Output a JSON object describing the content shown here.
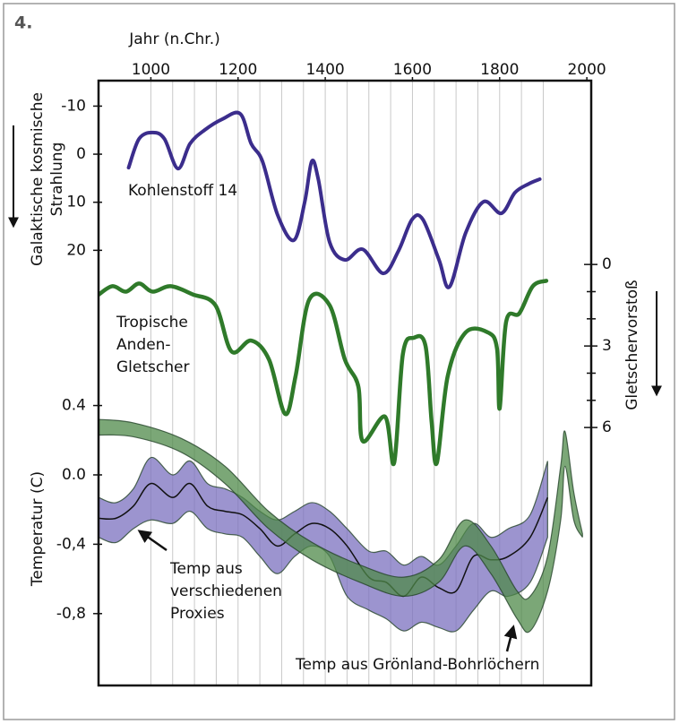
{
  "panel_label": "4.",
  "chart_data": [
    {
      "type": "line",
      "xlabel": "Jahr (n.Chr.)",
      "ylabel": [
        "Galaktische kosmische",
        "Strahlung"
      ],
      "xlim": [
        880,
        2010
      ],
      "xticks": [
        1000,
        1200,
        1400,
        1600,
        1800,
        2000
      ],
      "x_gridlines": [
        1000,
        1050,
        1100,
        1150,
        1200,
        1250,
        1300,
        1350,
        1400,
        1450,
        1500,
        1550,
        1600,
        1650,
        1700,
        1750,
        1800,
        1850,
        1900
      ],
      "ylim": [
        -15,
        30
      ],
      "y_inverted": true,
      "yticks": [
        -10,
        0,
        10,
        20
      ],
      "series": [
        {
          "name": "Kohlenstoff 14",
          "color": "#3b2d8c",
          "x": [
            949,
            973,
            1004,
            1031,
            1062,
            1090,
            1123,
            1164,
            1205,
            1230,
            1256,
            1291,
            1328,
            1353,
            1369,
            1384,
            1410,
            1445,
            1486,
            1533,
            1568,
            1599,
            1624,
            1661,
            1685,
            1722,
            1763,
            1804,
            1835,
            1866,
            1892
          ],
          "values": [
            2.8,
            -3.2,
            -4.5,
            -3.2,
            3.0,
            -2.2,
            -5.0,
            -7.3,
            -8.4,
            -2.2,
            1.5,
            12.7,
            17.9,
            9.9,
            1.5,
            5.2,
            18.3,
            22.0,
            19.8,
            24.8,
            20.1,
            13.6,
            13.6,
            22.0,
            27.6,
            16.4,
            9.9,
            12.3,
            8.0,
            6.2,
            5.2
          ]
        }
      ],
      "annotations": [
        {
          "text": [
            "Kohlenstoff 14"
          ]
        }
      ]
    },
    {
      "type": "line",
      "y2label": "Gletschervorstoß",
      "xlim": [
        880,
        2010
      ],
      "y2lim": [
        -0.5,
        7.5
      ],
      "y2_inverted": true,
      "y2ticks": [
        0,
        3,
        6
      ],
      "y2_minor_ticks": [
        1,
        2,
        4,
        5
      ],
      "series": [
        {
          "name": "Tropische Anden-Gletscher",
          "color": "#2f7a2a",
          "axis": "y2",
          "x": [
            881,
            912,
            943,
            973,
            1004,
            1045,
            1096,
            1148,
            1185,
            1230,
            1271,
            1308,
            1332,
            1363,
            1410,
            1445,
            1476,
            1486,
            1537,
            1558,
            1578,
            1603,
            1630,
            1644,
            1656,
            1681,
            1722,
            1773,
            1794,
            1800,
            1815,
            1845,
            1876,
            1907
          ],
          "values": [
            1.1,
            0.8,
            1.0,
            0.7,
            1.0,
            0.8,
            1.1,
            1.5,
            3.2,
            2.8,
            3.5,
            5.5,
            4.1,
            1.3,
            1.5,
            3.5,
            4.5,
            6.5,
            5.6,
            7.3,
            3.3,
            2.7,
            3.0,
            5.8,
            7.3,
            4.1,
            2.5,
            2.5,
            3.1,
            5.3,
            2.1,
            1.8,
            0.8,
            0.6
          ]
        }
      ],
      "annotations": [
        {
          "text": [
            "Tropische",
            "Anden-",
            "Gletscher"
          ]
        }
      ]
    },
    {
      "type": "band",
      "ylabel": "Temperatur (C)",
      "xlim": [
        880,
        2010
      ],
      "ylim": [
        -1.2,
        0.45
      ],
      "yticks": [
        0.4,
        {
          "value": 0,
          "label": "0.0"
        },
        {
          "value": -0.4,
          "label": "-0,4"
        },
        {
          "value": -0.8,
          "label": "-0,8"
        }
      ],
      "series": [
        {
          "name": "Temp aus Grönland-Bohrlöchern",
          "color": "#4f8a4a",
          "x": [
            880,
            960,
            1070,
            1170,
            1270,
            1370,
            1480,
            1580,
            1660,
            1720,
            1780,
            1840,
            1870,
            1910,
            1940,
            1950,
            1970,
            1990
          ],
          "upper": [
            0.32,
            0.3,
            0.21,
            0.05,
            -0.21,
            -0.39,
            -0.52,
            -0.59,
            -0.49,
            -0.26,
            -0.41,
            -0.67,
            -0.7,
            -0.47,
            0.05,
            0.25,
            -0.1,
            -0.34
          ],
          "lower": [
            0.23,
            0.22,
            0.13,
            -0.05,
            -0.31,
            -0.49,
            -0.62,
            -0.7,
            -0.62,
            -0.41,
            -0.57,
            -0.83,
            -0.9,
            -0.67,
            -0.26,
            0.05,
            -0.26,
            -0.36
          ]
        },
        {
          "name": "Temp aus verschiedenen Proxies",
          "color": "#7b70bf",
          "x": [
            880,
            920,
            960,
            1000,
            1050,
            1090,
            1130,
            1170,
            1210,
            1250,
            1290,
            1330,
            1370,
            1410,
            1450,
            1500,
            1540,
            1580,
            1620,
            1660,
            1700,
            1740,
            1780,
            1820,
            1870,
            1910
          ],
          "values": [
            -0.25,
            -0.25,
            -0.18,
            -0.05,
            -0.13,
            -0.05,
            -0.18,
            -0.21,
            -0.23,
            -0.31,
            -0.41,
            -0.34,
            -0.28,
            -0.31,
            -0.41,
            -0.59,
            -0.62,
            -0.7,
            -0.59,
            -0.65,
            -0.67,
            -0.47,
            -0.49,
            -0.47,
            -0.36,
            -0.13
          ],
          "upper": [
            -0.13,
            -0.16,
            -0.08,
            0.1,
            0.0,
            0.08,
            -0.05,
            -0.08,
            -0.13,
            -0.21,
            -0.26,
            -0.21,
            -0.16,
            -0.21,
            -0.31,
            -0.44,
            -0.44,
            -0.52,
            -0.47,
            -0.52,
            -0.41,
            -0.28,
            -0.36,
            -0.31,
            -0.23,
            0.08
          ],
          "lower": [
            -0.36,
            -0.39,
            -0.31,
            -0.26,
            -0.28,
            -0.21,
            -0.31,
            -0.34,
            -0.36,
            -0.47,
            -0.57,
            -0.47,
            -0.41,
            -0.47,
            -0.7,
            -0.78,
            -0.83,
            -0.9,
            -0.85,
            -0.88,
            -0.9,
            -0.78,
            -0.67,
            -0.7,
            -0.62,
            -0.36
          ]
        }
      ],
      "annotations": [
        {
          "text": [
            "Temp aus",
            "verschiedenen",
            "Proxies"
          ]
        },
        {
          "text": [
            "Temp aus Grönland-Bohrlöchern"
          ]
        }
      ]
    }
  ]
}
